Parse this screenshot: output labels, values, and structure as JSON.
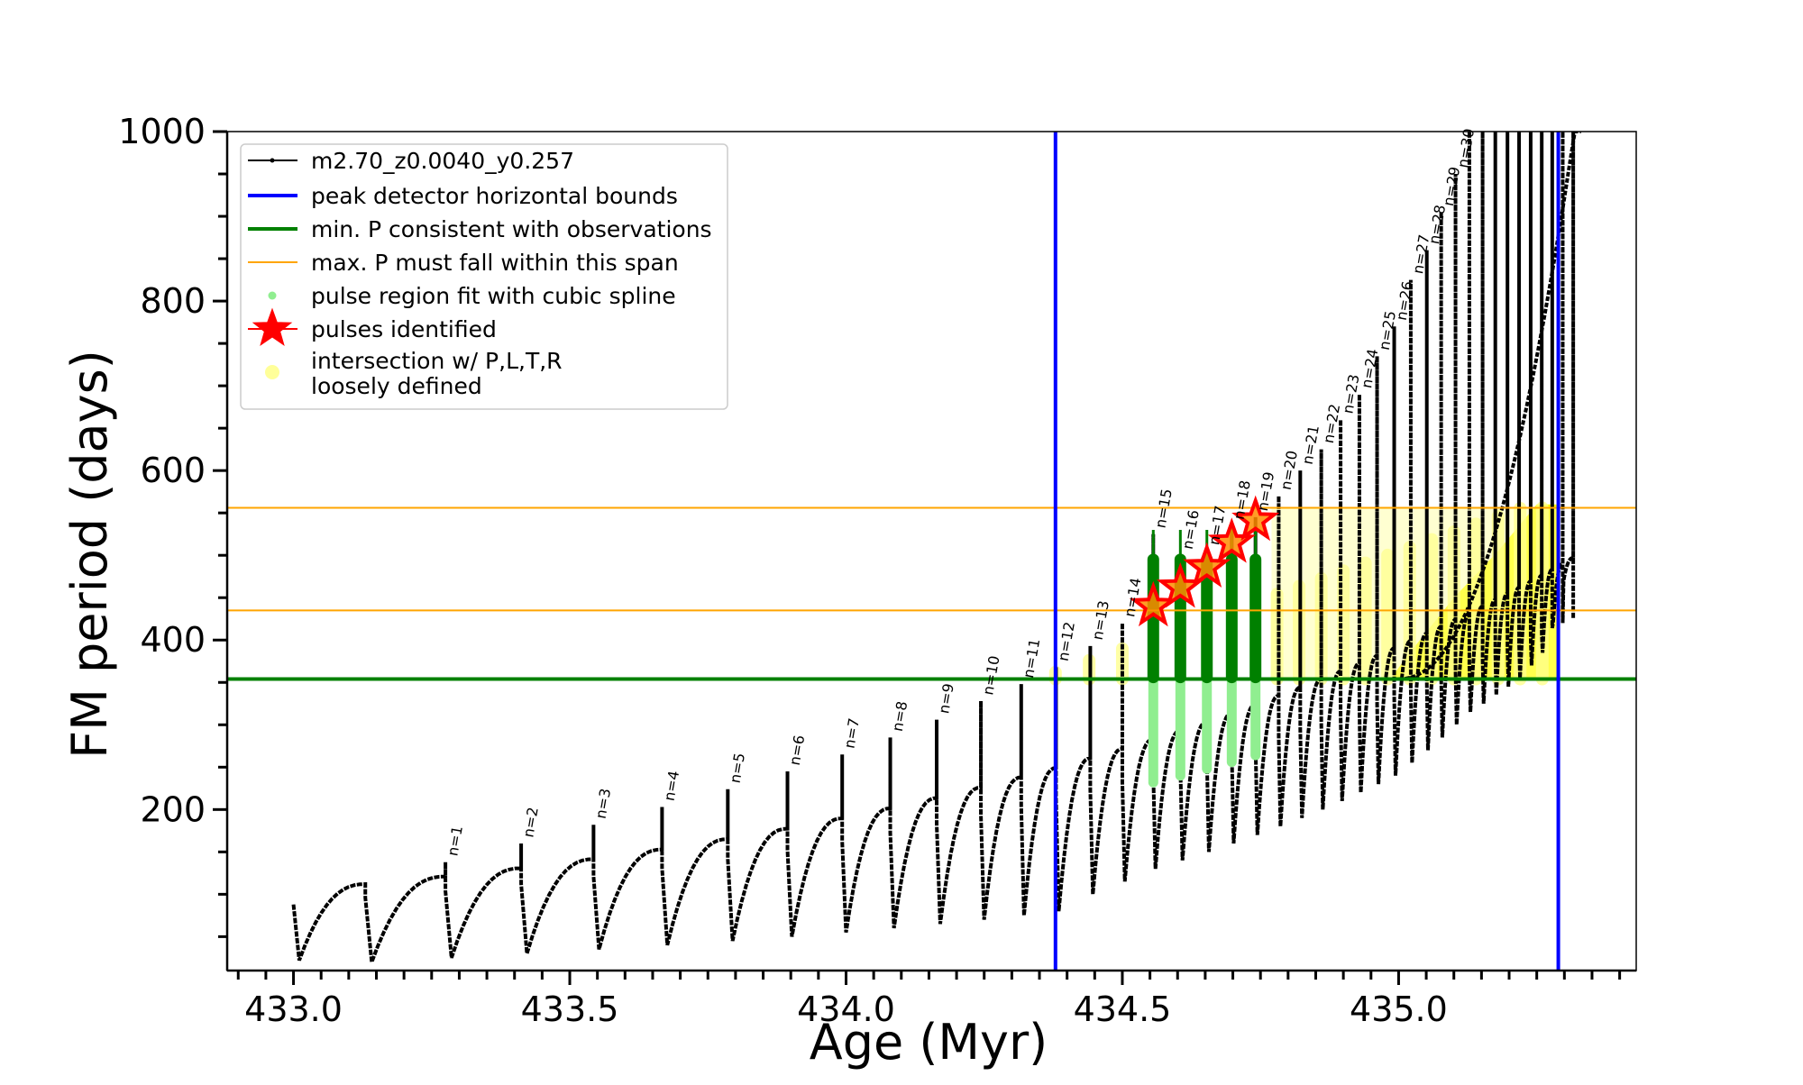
{
  "chart_data": {
    "type": "line",
    "xlabel": "Age (Myr)",
    "ylabel": "FM period (days)",
    "xlim": [
      432.88,
      435.43
    ],
    "ylim": [
      10,
      1000
    ],
    "xticks": [
      433.0,
      433.5,
      434.0,
      434.5,
      435.0
    ],
    "xtick_labels": [
      "433.0",
      "433.5",
      "434.0",
      "434.5",
      "435.0"
    ],
    "yticks": [
      200,
      400,
      600,
      800,
      1000
    ],
    "ytick_labels": [
      "200",
      "400",
      "600",
      "800",
      "1000"
    ],
    "legend": {
      "placement": "top-left",
      "entries": [
        {
          "label": "m2.70_z0.0040_y0.257",
          "kind": "line-marker",
          "color": "#000000"
        },
        {
          "label": "peak detector horizontal bounds",
          "kind": "line",
          "color": "#0000ff"
        },
        {
          "label": "min. P consistent with observations",
          "kind": "line",
          "color": "#008000"
        },
        {
          "label": "max. P must fall within this span",
          "kind": "thinline",
          "color": "#ffa500"
        },
        {
          "label": "pulse region fit with cubic spline",
          "kind": "dot",
          "color": "#90ee90"
        },
        {
          "label": "pulses identified",
          "kind": "star",
          "color": "#ff0000"
        },
        {
          "label": "intersection w/ P,L,T,R",
          "label2": "loosely defined",
          "kind": "bigdot",
          "color": "#ffff99"
        }
      ]
    },
    "vlines": [
      {
        "x": 434.379,
        "color": "#0000ff"
      },
      {
        "x": 435.289,
        "color": "#0000ff"
      }
    ],
    "hlines": [
      {
        "y": 354,
        "color": "#008000",
        "role": "min"
      },
      {
        "y": 435,
        "color": "#ffa500",
        "role": "span-low"
      },
      {
        "y": 556,
        "color": "#ffa500",
        "role": "span-high"
      }
    ],
    "pulses": [
      {
        "n": "n=1",
        "x": 433.275,
        "peak": 138,
        "min": 25
      },
      {
        "n": "n=2",
        "x": 433.412,
        "peak": 160,
        "min": 30
      },
      {
        "n": "n=3",
        "x": 433.543,
        "peak": 182,
        "min": 35
      },
      {
        "n": "n=4",
        "x": 433.667,
        "peak": 203,
        "min": 40
      },
      {
        "n": "n=5",
        "x": 433.786,
        "peak": 224,
        "min": 45
      },
      {
        "n": "n=6",
        "x": 433.894,
        "peak": 245,
        "min": 50
      },
      {
        "n": "n=7",
        "x": 433.993,
        "peak": 265,
        "min": 55
      },
      {
        "n": "n=8",
        "x": 434.08,
        "peak": 285,
        "min": 60
      },
      {
        "n": "n=9",
        "x": 434.164,
        "peak": 306,
        "min": 65
      },
      {
        "n": "n=10",
        "x": 434.244,
        "peak": 328,
        "min": 70
      },
      {
        "n": "n=11",
        "x": 434.317,
        "peak": 348,
        "min": 75
      },
      {
        "n": "n=12",
        "x": 434.38,
        "peak": 368,
        "min": 80
      },
      {
        "n": "n=13",
        "x": 434.442,
        "peak": 393,
        "min": 100
      },
      {
        "n": "n=14",
        "x": 434.5,
        "peak": 420,
        "min": 115
      },
      {
        "n": "n=15",
        "x": 434.556,
        "peak": 525,
        "min": 130
      },
      {
        "n": "n=16",
        "x": 434.605,
        "peak": 500,
        "min": 140
      },
      {
        "n": "n=17",
        "x": 434.653,
        "peak": 505,
        "min": 150
      },
      {
        "n": "n=18",
        "x": 434.698,
        "peak": 535,
        "min": 160
      },
      {
        "n": "n=19",
        "x": 434.741,
        "peak": 545,
        "min": 170
      },
      {
        "n": "n=20",
        "x": 434.783,
        "peak": 570,
        "min": 180
      },
      {
        "n": "n=21",
        "x": 434.822,
        "peak": 600,
        "min": 190
      },
      {
        "n": "n=22",
        "x": 434.86,
        "peak": 625,
        "min": 200
      },
      {
        "n": "n=23",
        "x": 434.895,
        "peak": 660,
        "min": 210
      },
      {
        "n": "n=24",
        "x": 434.929,
        "peak": 690,
        "min": 220
      },
      {
        "n": "n=25",
        "x": 434.961,
        "peak": 735,
        "min": 230
      },
      {
        "n": "n=26",
        "x": 434.992,
        "peak": 770,
        "min": 240
      },
      {
        "n": "n=27",
        "x": 435.022,
        "peak": 825,
        "min": 255
      },
      {
        "n": "n=28",
        "x": 435.051,
        "peak": 860,
        "min": 270
      },
      {
        "n": "n=29",
        "x": 435.077,
        "peak": 905,
        "min": 285
      },
      {
        "n": "n=30",
        "x": 435.103,
        "peak": 950,
        "min": 300
      }
    ],
    "extra_spikes": [
      {
        "x": 433.13,
        "peak": 100,
        "min": 20
      },
      {
        "x": 435.128,
        "peak": 1000,
        "min": 315
      },
      {
        "x": 435.152,
        "peak": 1000,
        "min": 325
      },
      {
        "x": 435.175,
        "peak": 1000,
        "min": 335
      },
      {
        "x": 435.197,
        "peak": 1000,
        "min": 345
      },
      {
        "x": 435.218,
        "peak": 1000,
        "min": 355
      },
      {
        "x": 435.239,
        "peak": 1000,
        "min": 370
      },
      {
        "x": 435.259,
        "peak": 1000,
        "min": 385
      },
      {
        "x": 435.278,
        "peak": 1000,
        "min": 420
      },
      {
        "x": 435.297,
        "peak": 1000,
        "min": 470
      },
      {
        "x": 435.316,
        "peak": 1000,
        "min": 580
      }
    ],
    "identified_pulses": [
      {
        "x": 434.556,
        "y": 440
      },
      {
        "x": 434.605,
        "y": 462
      },
      {
        "x": 434.653,
        "y": 486
      },
      {
        "x": 434.698,
        "y": 515
      },
      {
        "x": 434.741,
        "y": 541
      }
    ],
    "green_fit_regions": [
      {
        "x": 434.556,
        "y_low": 232,
        "y_high": 495,
        "y_dark_low": 356
      },
      {
        "x": 434.605,
        "y_low": 240,
        "y_high": 495,
        "y_dark_low": 356
      },
      {
        "x": 434.653,
        "y_low": 248,
        "y_high": 495,
        "y_dark_low": 356
      },
      {
        "x": 434.698,
        "y_low": 256,
        "y_high": 495,
        "y_dark_low": 356
      },
      {
        "x": 434.741,
        "y_low": 264,
        "y_high": 495,
        "y_dark_low": 356
      }
    ],
    "yellow_region": {
      "scatter_x": [
        434.379,
        434.44,
        434.5,
        434.78,
        434.82,
        434.86,
        434.9,
        434.94,
        434.98,
        435.02,
        435.06,
        435.1,
        435.14,
        435.18,
        435.22,
        435.26
      ],
      "fill_polygon": [
        [
          434.985,
          354
        ],
        [
          435.289,
          354
        ],
        [
          435.289,
          560
        ],
        [
          435.25,
          560
        ],
        [
          435.18,
          505
        ],
        [
          435.1,
          450
        ],
        [
          435.02,
          385
        ]
      ]
    }
  }
}
